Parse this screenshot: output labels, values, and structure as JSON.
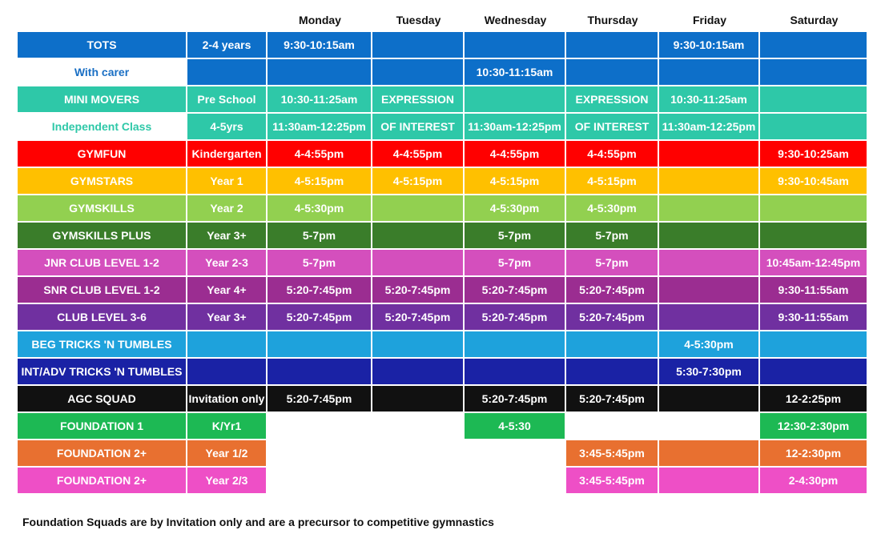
{
  "header": {
    "days": [
      "Monday",
      "Tuesday",
      "Wednesday",
      "Thursday",
      "Friday",
      "Saturday"
    ]
  },
  "rows": [
    {
      "name": "TOTS",
      "age": "2-4 years",
      "bg": "#0d6fc9",
      "name_bg": "#0d6fc9",
      "age_bg": "#0d6fc9",
      "name_fg": "#ffffff",
      "age_fg": "#ffffff",
      "cells": [
        "9:30-10:15am",
        "",
        "",
        "",
        "9:30-10:15am",
        ""
      ],
      "cell_bg": [
        "#0d6fc9",
        "#0d6fc9",
        "#0d6fc9",
        "#0d6fc9",
        "#0d6fc9",
        "#0d6fc9"
      ]
    },
    {
      "name": "With carer",
      "age": "",
      "bg": "#0d6fc9",
      "name_bg": "#ffffff",
      "age_bg": "#0d6fc9",
      "name_fg": "#1a6fc4",
      "age_fg": "#ffffff",
      "cells": [
        "",
        "",
        "10:30-11:15am",
        "",
        "",
        ""
      ],
      "cell_bg": [
        "#0d6fc9",
        "#0d6fc9",
        "#0d6fc9",
        "#0d6fc9",
        "#0d6fc9",
        "#0d6fc9"
      ]
    },
    {
      "name": "MINI MOVERS",
      "age": "Pre School",
      "bg": "#2ec8a8",
      "name_bg": "#2ec8a8",
      "age_bg": "#2ec8a8",
      "name_fg": "#ffffff",
      "age_fg": "#ffffff",
      "cells": [
        "10:30-11:25am",
        "EXPRESSION",
        "",
        "EXPRESSION",
        "10:30-11:25am",
        ""
      ],
      "cell_bg": [
        "#2ec8a8",
        "#2ec8a8",
        "#2ec8a8",
        "#2ec8a8",
        "#2ec8a8",
        "#2ec8a8"
      ]
    },
    {
      "name": "Independent Class",
      "age": "4-5yrs",
      "bg": "#2ec8a8",
      "name_bg": "#ffffff",
      "age_bg": "#2ec8a8",
      "name_fg": "#2ec8a8",
      "age_fg": "#ffffff",
      "cells": [
        "11:30am-12:25pm",
        "OF INTEREST",
        "11:30am-12:25pm",
        "OF INTEREST",
        "11:30am-12:25pm",
        ""
      ],
      "cell_bg": [
        "#2ec8a8",
        "#2ec8a8",
        "#2ec8a8",
        "#2ec8a8",
        "#2ec8a8",
        "#2ec8a8"
      ]
    },
    {
      "name": "GYMFUN",
      "age": "Kindergarten",
      "bg": "#ff0000",
      "name_bg": "#ff0000",
      "age_bg": "#ff0000",
      "name_fg": "#ffffff",
      "age_fg": "#ffffff",
      "cells": [
        "4-4:55pm",
        "4-4:55pm",
        "4-4:55pm",
        "4-4:55pm",
        "",
        "9:30-10:25am"
      ],
      "cell_bg": [
        "#ff0000",
        "#ff0000",
        "#ff0000",
        "#ff0000",
        "#ff0000",
        "#ff0000"
      ]
    },
    {
      "name": "GYMSTARS",
      "age": "Year 1",
      "bg": "#ffc000",
      "name_bg": "#ffc000",
      "age_bg": "#ffc000",
      "name_fg": "#ffffff",
      "age_fg": "#ffffff",
      "cells": [
        "4-5:15pm",
        "4-5:15pm",
        "4-5:15pm",
        "4-5:15pm",
        "",
        "9:30-10:45am"
      ],
      "cell_bg": [
        "#ffc000",
        "#ffc000",
        "#ffc000",
        "#ffc000",
        "#ffc000",
        "#ffc000"
      ]
    },
    {
      "name": "GYMSKILLS",
      "age": "Year 2",
      "bg": "#92d050",
      "name_bg": "#92d050",
      "age_bg": "#92d050",
      "name_fg": "#ffffff",
      "age_fg": "#ffffff",
      "cells": [
        "4-5:30pm",
        "",
        "4-5:30pm",
        "4-5:30pm",
        "",
        ""
      ],
      "cell_bg": [
        "#92d050",
        "#92d050",
        "#92d050",
        "#92d050",
        "#92d050",
        "#92d050"
      ]
    },
    {
      "name": "GYMSKILLS PLUS",
      "age": "Year 3+",
      "bg": "#3a7d2a",
      "name_bg": "#3a7d2a",
      "age_bg": "#3a7d2a",
      "name_fg": "#ffffff",
      "age_fg": "#ffffff",
      "cells": [
        "5-7pm",
        "",
        "5-7pm",
        "5-7pm",
        "",
        ""
      ],
      "cell_bg": [
        "#3a7d2a",
        "#3a7d2a",
        "#3a7d2a",
        "#3a7d2a",
        "#3a7d2a",
        "#3a7d2a"
      ]
    },
    {
      "name": "JNR CLUB LEVEL 1-2",
      "age": "Year 2-3",
      "bg": "#d44fbd",
      "name_bg": "#d44fbd",
      "age_bg": "#d44fbd",
      "name_fg": "#ffffff",
      "age_fg": "#ffffff",
      "cells": [
        "5-7pm",
        "",
        "5-7pm",
        "5-7pm",
        "",
        "10:45am-12:45pm"
      ],
      "cell_bg": [
        "#d44fbd",
        "#d44fbd",
        "#d44fbd",
        "#d44fbd",
        "#d44fbd",
        "#d44fbd"
      ]
    },
    {
      "name": "SNR CLUB LEVEL 1-2",
      "age": "Year 4+",
      "bg": "#9b2d91",
      "name_bg": "#9b2d91",
      "age_bg": "#9b2d91",
      "name_fg": "#ffffff",
      "age_fg": "#ffffff",
      "cells": [
        "5:20-7:45pm",
        "5:20-7:45pm",
        "5:20-7:45pm",
        "5:20-7:45pm",
        "",
        "9:30-11:55am"
      ],
      "cell_bg": [
        "#9b2d91",
        "#9b2d91",
        "#9b2d91",
        "#9b2d91",
        "#9b2d91",
        "#9b2d91"
      ]
    },
    {
      "name": "CLUB LEVEL 3-6",
      "age": "Year 3+",
      "bg": "#7030a0",
      "name_bg": "#7030a0",
      "age_bg": "#7030a0",
      "name_fg": "#ffffff",
      "age_fg": "#ffffff",
      "cells": [
        "5:20-7:45pm",
        "5:20-7:45pm",
        "5:20-7:45pm",
        "5:20-7:45pm",
        "",
        "9:30-11:55am"
      ],
      "cell_bg": [
        "#7030a0",
        "#7030a0",
        "#7030a0",
        "#7030a0",
        "#7030a0",
        "#7030a0"
      ]
    },
    {
      "name": "BEG TRICKS 'N TUMBLES",
      "age": "",
      "bg": "#1ea2dc",
      "name_bg": "#1ea2dc",
      "age_bg": "#1ea2dc",
      "name_fg": "#ffffff",
      "age_fg": "#ffffff",
      "cells": [
        "",
        "",
        "",
        "",
        "4-5:30pm",
        ""
      ],
      "cell_bg": [
        "#1ea2dc",
        "#1ea2dc",
        "#1ea2dc",
        "#1ea2dc",
        "#1ea2dc",
        "#1ea2dc"
      ]
    },
    {
      "name": "INT/ADV TRICKS 'N TUMBLES",
      "age": "",
      "bg": "#1a22a5",
      "name_bg": "#1a22a5",
      "age_bg": "#1a22a5",
      "name_fg": "#ffffff",
      "age_fg": "#ffffff",
      "cells": [
        "",
        "",
        "",
        "",
        "5:30-7:30pm",
        ""
      ],
      "cell_bg": [
        "#1a22a5",
        "#1a22a5",
        "#1a22a5",
        "#1a22a5",
        "#1a22a5",
        "#1a22a5"
      ]
    },
    {
      "name": "AGC SQUAD",
      "age": "Invitation only",
      "bg": "#111111",
      "name_bg": "#111111",
      "age_bg": "#111111",
      "name_fg": "#ffffff",
      "age_fg": "#ffffff",
      "cells": [
        "5:20-7:45pm",
        "",
        "5:20-7:45pm",
        "5:20-7:45pm",
        "",
        "12-2:25pm"
      ],
      "cell_bg": [
        "#111111",
        "#111111",
        "#111111",
        "#111111",
        "#111111",
        "#111111"
      ]
    },
    {
      "name": "FOUNDATION 1",
      "age": "K/Yr1",
      "bg": "#1db954",
      "name_bg": "#1db954",
      "age_bg": "#1db954",
      "name_fg": "#ffffff",
      "age_fg": "#ffffff",
      "cells": [
        "",
        "",
        "4-5:30",
        "",
        "",
        "12:30-2:30pm"
      ],
      "cell_bg": [
        "#ffffff",
        "#ffffff",
        "#1db954",
        "#ffffff",
        "#ffffff",
        "#1db954"
      ]
    },
    {
      "name": "FOUNDATION 2+",
      "age": "Year 1/2",
      "bg": "#e87030",
      "name_bg": "#e87030",
      "age_bg": "#e87030",
      "name_fg": "#ffffff",
      "age_fg": "#ffffff",
      "cells": [
        "",
        "",
        "",
        "3:45-5:45pm",
        "",
        "12-2:30pm"
      ],
      "cell_bg": [
        "#ffffff",
        "#ffffff",
        "#ffffff",
        "#e87030",
        "#e87030",
        "#e87030"
      ]
    },
    {
      "name": "FOUNDATION 2+",
      "age": "Year 2/3",
      "bg": "#ee4fc6",
      "name_bg": "#ee4fc6",
      "age_bg": "#ee4fc6",
      "name_fg": "#ffffff",
      "age_fg": "#ffffff",
      "cells": [
        "",
        "",
        "",
        "3:45-5:45pm",
        "",
        "2-4:30pm"
      ],
      "cell_bg": [
        "#ffffff",
        "#ffffff",
        "#ffffff",
        "#ee4fc6",
        "#ee4fc6",
        "#ee4fc6"
      ]
    }
  ],
  "footnote": "Foundation Squads are by Invitation only and are a precursor to competitive gymnastics"
}
